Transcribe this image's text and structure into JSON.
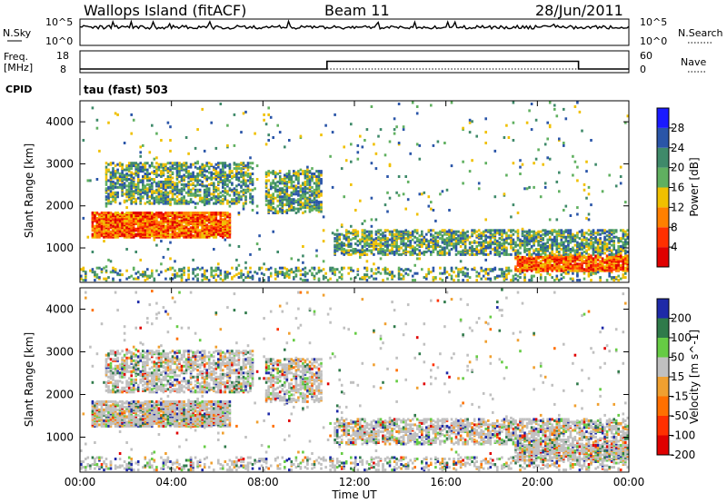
{
  "header": {
    "station": "Wallops Island (fitACF)",
    "beam": "Beam 11",
    "date": "28/Jun/2011"
  },
  "noise_panel": {
    "left_label": "N.Sky",
    "right_label": "N.Search",
    "left_ticks": [
      "10^5",
      "10^0"
    ],
    "right_ticks": [
      "10^5",
      "10^0"
    ]
  },
  "freq_panel": {
    "left_label_1": "Freq.",
    "left_label_2": "[MHz]",
    "left_ticks": [
      "18",
      "8"
    ],
    "right_label": "Nave",
    "right_ticks": [
      "60",
      "0"
    ]
  },
  "cpid": {
    "label": "CPID",
    "mode": "tau (fast) 503"
  },
  "chart_data": [
    {
      "type": "heatmap",
      "title": "Power",
      "ylabel": "Slant Range [km]",
      "xlabel": "",
      "ylim": [
        180,
        4500
      ],
      "yticks": [
        "1000",
        "2000",
        "3000",
        "4000"
      ],
      "colorbar_label": "Power [dB]",
      "colorbar_ticks": [
        "4",
        "8",
        "12",
        "16",
        "20",
        "24",
        "28"
      ],
      "colors": [
        "#1a1aff",
        "#2a55a8",
        "#3f8a6a",
        "#60b060",
        "#f0c000",
        "#ff8000",
        "#ff3000",
        "#e00000"
      ],
      "bands": [
        {
          "t_start": 0.5,
          "t_end": 6.5,
          "range_start": 1200,
          "range_end": 1800,
          "level": "strong"
        },
        {
          "t_start": 1.0,
          "t_end": 7.5,
          "range_start": 2000,
          "range_end": 3000,
          "level": "moderate"
        },
        {
          "t_start": 8.0,
          "t_end": 10.5,
          "range_start": 1800,
          "range_end": 2800,
          "level": "moderate"
        },
        {
          "t_start": 11.0,
          "t_end": 24.0,
          "range_start": 800,
          "range_end": 1400,
          "level": "moderate"
        },
        {
          "t_start": 19.0,
          "t_end": 24.0,
          "range_start": 400,
          "range_end": 800,
          "level": "strong"
        }
      ]
    },
    {
      "type": "heatmap",
      "title": "Velocity",
      "ylabel": "Slant Range [km]",
      "xlabel": "Time UT",
      "ylim": [
        180,
        4500
      ],
      "yticks": [
        "1000",
        "2000",
        "3000",
        "4000"
      ],
      "xticks": [
        "00:00",
        "04:00",
        "08:00",
        "12:00",
        "16:00",
        "20:00",
        "00:00"
      ],
      "colorbar_label": "Velocity [m s^-1]",
      "colorbar_ticks": [
        "200",
        "100",
        "50",
        "15",
        "-15",
        "-50",
        "-100",
        "-200"
      ],
      "colors": [
        "#1e2aa8",
        "#2f7a4a",
        "#66cc44",
        "#c0c0c0",
        "#f0a030",
        "#ff7000",
        "#ff3000",
        "#e00000"
      ]
    }
  ],
  "freq_series": {
    "t": [
      0,
      10.8,
      10.8,
      21.8,
      21.8,
      24
    ],
    "freq_mhz": [
      10.5,
      10.5,
      15.8,
      15.8,
      10.5,
      10.5
    ]
  }
}
